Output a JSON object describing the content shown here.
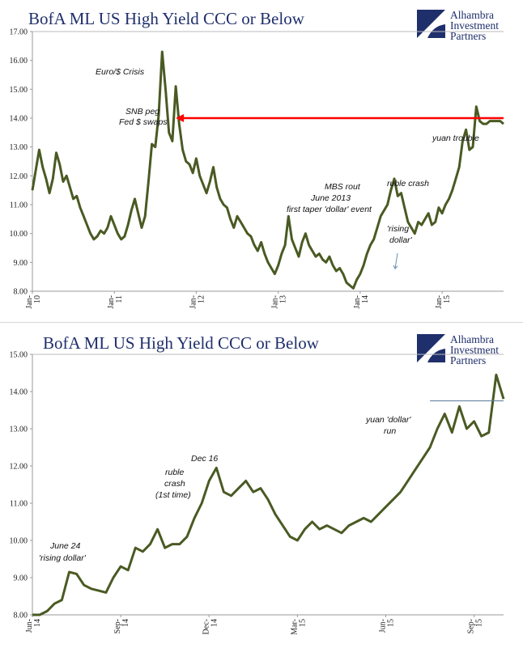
{
  "brand": {
    "logo_lines": [
      "Alhambra",
      "Investment",
      "Partners"
    ],
    "logo_color": "#1f2f6b"
  },
  "colors": {
    "line": "#4a5a23",
    "marker_line": "#ff0000",
    "title": "#1f2f6b"
  },
  "chart_data": [
    {
      "type": "line",
      "title": "BofA ML US High Yield CCC or Below",
      "xlabel": "",
      "ylabel": "",
      "ylim": [
        8.0,
        17.0
      ],
      "yticks": [
        "8.00",
        "9.00",
        "10.00",
        "11.00",
        "12.00",
        "13.00",
        "14.00",
        "15.00",
        "16.00",
        "17.00"
      ],
      "xlim": [
        0,
        69
      ],
      "xticks": [
        {
          "label": "Jan-10",
          "x": 0
        },
        {
          "label": "Jan-11",
          "x": 12
        },
        {
          "label": "Jan-12",
          "x": 24
        },
        {
          "label": "Jan-13",
          "x": 36
        },
        {
          "label": "Jan-14",
          "x": 48
        },
        {
          "label": "Jan-15",
          "x": 60
        }
      ],
      "grid": false,
      "series": [
        {
          "x": [
            0,
            0.5,
            1,
            1.5,
            2,
            2.5,
            3,
            3.5,
            4,
            4.5,
            5,
            5.5,
            6,
            6.5,
            7,
            7.5,
            8,
            8.5,
            9,
            9.5,
            10,
            10.5,
            11,
            11.5,
            12,
            12.5,
            13,
            13.5,
            14,
            14.5,
            15,
            15.5,
            16,
            16.5,
            17,
            17.5,
            18,
            18.5,
            19,
            19.5,
            20,
            20.5,
            21,
            21.5,
            22,
            22.5,
            23,
            23.5,
            24,
            24.5,
            25,
            25.5,
            26,
            26.5,
            27,
            27.5,
            28,
            28.5,
            29,
            29.5,
            30,
            30.5,
            31,
            31.5,
            32,
            32.5,
            33,
            33.5,
            34,
            34.5,
            35,
            35.5,
            36,
            36.5,
            37,
            37.5,
            38,
            38.5,
            39,
            39.5,
            40,
            40.5,
            41,
            41.5,
            42,
            42.5,
            43,
            43.5,
            44,
            44.5,
            45,
            45.5,
            46,
            46.5,
            47,
            47.5,
            48,
            48.5,
            49,
            49.5,
            50,
            50.5,
            51,
            51.5,
            52,
            52.5,
            53,
            53.5,
            54,
            54.5,
            55,
            55.5,
            56,
            56.5,
            57,
            57.5,
            58,
            58.5,
            59,
            59.5,
            60,
            60.5,
            61,
            61.5,
            62,
            62.5,
            63,
            63.5,
            64,
            64.5,
            65,
            65.5,
            66,
            66.5,
            67,
            67.5,
            68,
            68.5,
            69
          ],
          "values": [
            11.5,
            12.2,
            12.9,
            12.3,
            11.9,
            11.4,
            11.9,
            12.8,
            12.4,
            11.8,
            12.0,
            11.6,
            11.2,
            11.3,
            10.9,
            10.6,
            10.3,
            10.0,
            9.8,
            9.9,
            10.1,
            10.0,
            10.2,
            10.6,
            10.3,
            10.0,
            9.8,
            9.9,
            10.3,
            10.8,
            11.2,
            10.7,
            10.2,
            10.6,
            11.8,
            13.1,
            13.0,
            14.1,
            16.3,
            15.0,
            13.5,
            13.2,
            15.1,
            13.8,
            12.9,
            12.5,
            12.4,
            12.1,
            12.6,
            12.0,
            11.7,
            11.4,
            11.8,
            12.3,
            11.6,
            11.2,
            11.0,
            10.9,
            10.5,
            10.2,
            10.6,
            10.4,
            10.2,
            10.0,
            9.9,
            9.6,
            9.4,
            9.7,
            9.3,
            9.0,
            8.8,
            8.6,
            8.9,
            9.3,
            9.6,
            10.6,
            9.8,
            9.5,
            9.2,
            9.7,
            10.0,
            9.6,
            9.4,
            9.2,
            9.3,
            9.1,
            9.0,
            9.2,
            8.9,
            8.7,
            8.8,
            8.6,
            8.3,
            8.2,
            8.1,
            8.4,
            8.6,
            8.9,
            9.3,
            9.6,
            9.8,
            10.2,
            10.6,
            10.8,
            11.0,
            11.5,
            11.9,
            11.3,
            11.4,
            10.9,
            10.4,
            10.2,
            10.0,
            10.4,
            10.3,
            10.5,
            10.7,
            10.3,
            10.4,
            10.9,
            10.7,
            11.0,
            11.2,
            11.5,
            11.9,
            12.3,
            13.2,
            13.6,
            12.9,
            13.0,
            14.4,
            13.9,
            13.8,
            13.8,
            13.9,
            13.9,
            13.9,
            13.9,
            13.8
          ]
        }
      ],
      "reference_line": {
        "y": 14.0,
        "x_start": 21,
        "x_end": 69,
        "style": "red arrow"
      },
      "annotations": [
        "Euro/$ Crisis",
        "SNB peg",
        "Fed $ swaps",
        "MBS rout",
        "June 2013",
        "first taper 'dollar' event",
        "'rising",
        "dollar'",
        "ruble crash",
        "yuan trouble"
      ]
    },
    {
      "type": "line",
      "title": "BofA ML US High Yield CCC or Below",
      "xlabel": "",
      "ylabel": "",
      "ylim": [
        8.0,
        15.0
      ],
      "yticks": [
        "8.00",
        "9.00",
        "10.00",
        "11.00",
        "12.00",
        "13.00",
        "14.00",
        "15.00"
      ],
      "xlim": [
        0,
        16
      ],
      "xticks": [
        {
          "label": "Jun-14",
          "x": 0
        },
        {
          "label": "Sep-14",
          "x": 3
        },
        {
          "label": "Dec-14",
          "x": 6
        },
        {
          "label": "Mar-15",
          "x": 9
        },
        {
          "label": "Jun-15",
          "x": 12
        },
        {
          "label": "Sep-15",
          "x": 15
        }
      ],
      "grid": false,
      "series": [
        {
          "x": [
            0,
            0.25,
            0.5,
            0.75,
            1,
            1.25,
            1.5,
            1.75,
            2,
            2.25,
            2.5,
            2.75,
            3,
            3.25,
            3.5,
            3.75,
            4,
            4.25,
            4.5,
            4.75,
            5,
            5.25,
            5.5,
            5.75,
            6,
            6.25,
            6.5,
            6.75,
            7,
            7.25,
            7.5,
            7.75,
            8,
            8.25,
            8.5,
            8.75,
            9,
            9.25,
            9.5,
            9.75,
            10,
            10.25,
            10.5,
            10.75,
            11,
            11.25,
            11.5,
            11.75,
            12,
            12.25,
            12.5,
            12.75,
            13,
            13.25,
            13.5,
            13.75,
            14,
            14.25,
            14.5,
            14.75,
            15,
            15.25,
            15.5,
            15.75,
            16
          ],
          "values": [
            8.0,
            8.0,
            8.1,
            8.3,
            8.4,
            9.15,
            9.1,
            8.8,
            8.7,
            8.65,
            8.6,
            9.0,
            9.3,
            9.2,
            9.8,
            9.7,
            9.9,
            10.3,
            9.8,
            9.9,
            9.9,
            10.1,
            10.6,
            11.0,
            11.6,
            11.95,
            11.3,
            11.2,
            11.4,
            11.6,
            11.3,
            11.4,
            11.1,
            10.7,
            10.4,
            10.1,
            10.0,
            10.3,
            10.5,
            10.3,
            10.4,
            10.3,
            10.2,
            10.4,
            10.5,
            10.6,
            10.5,
            10.7,
            10.9,
            11.1,
            11.3,
            11.6,
            11.9,
            12.2,
            12.5,
            13.0,
            13.4,
            12.9,
            13.6,
            13.0,
            13.2,
            12.8,
            12.9,
            14.45,
            13.8
          ]
        }
      ],
      "reference_line": {
        "y": 13.75,
        "x_start": 13.5,
        "x_end": 16,
        "style": "thin line"
      },
      "annotations": [
        "June 24",
        "'rising dollar'",
        "ruble",
        "crash",
        "(1st time)",
        "Dec 16",
        "yuan 'dollar'",
        "run"
      ]
    }
  ]
}
